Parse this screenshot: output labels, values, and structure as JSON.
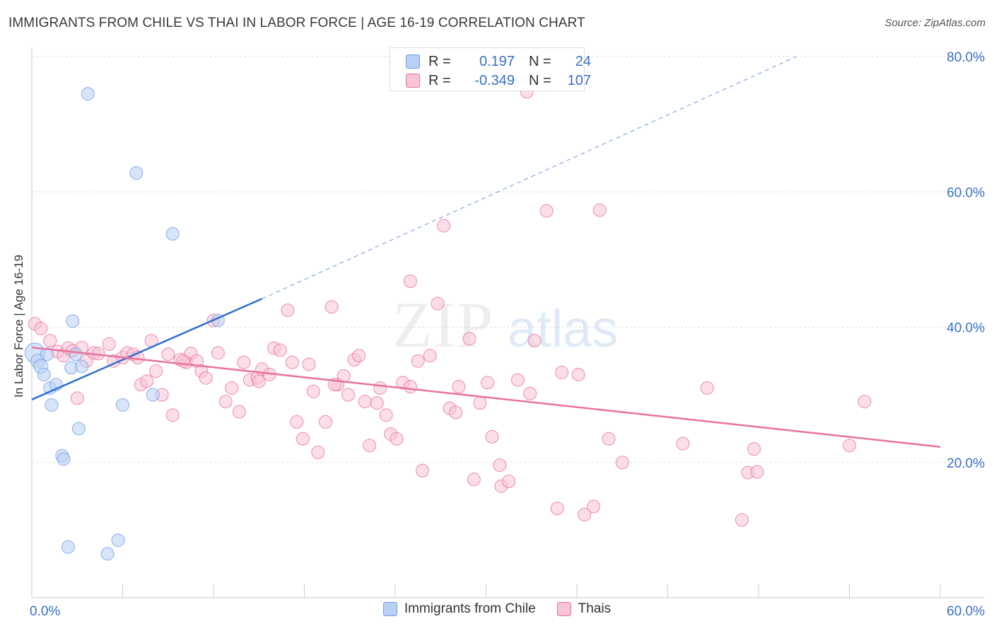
{
  "header": {
    "title": "IMMIGRANTS FROM CHILE VS THAI IN LABOR FORCE | AGE 16-19 CORRELATION CHART",
    "source": "Source: ZipAtlas.com"
  },
  "stats": {
    "rows": [
      {
        "r_label": "R =",
        "r_value": "0.197",
        "n_label": "N =",
        "n_value": "24",
        "color": "#6f9ee8"
      },
      {
        "r_label": "R =",
        "r_value": "-0.349",
        "n_label": "N =",
        "n_value": "107",
        "color": "#f08db0"
      }
    ]
  },
  "watermark": {
    "zip": "ZIP",
    "atlas": "atlas"
  },
  "chart_data": {
    "type": "scatter",
    "ylabel": "In Labor Force | Age 16-19",
    "xlim": [
      0,
      60
    ],
    "ylim": [
      0,
      80
    ],
    "x_tick_labels": [
      "0.0%",
      "60.0%"
    ],
    "y_ticks": [
      20,
      40,
      60,
      80
    ],
    "y_tick_labels": [
      "20.0%",
      "40.0%",
      "60.0%",
      "80.0%"
    ],
    "grid": true,
    "legend_position": "bottom",
    "series": [
      {
        "name": "Immigrants from Chile",
        "color": "#6f9ee8",
        "fill": "#b8d0f3",
        "trend": {
          "x0": 0,
          "y0": 29.3,
          "x1": 15.2,
          "y1": 44.2,
          "extend_to_x": 50.5,
          "extend_to_y": 80.0
        },
        "points": [
          [
            0.2,
            36.2
          ],
          [
            0.4,
            35.0
          ],
          [
            0.6,
            34.2
          ],
          [
            0.8,
            33.0
          ],
          [
            1.0,
            36.0
          ],
          [
            1.2,
            31.0
          ],
          [
            1.3,
            28.5
          ],
          [
            1.6,
            31.5
          ],
          [
            2.0,
            21.0
          ],
          [
            2.1,
            20.5
          ],
          [
            2.4,
            7.5
          ],
          [
            2.6,
            34.0
          ],
          [
            2.7,
            40.9
          ],
          [
            2.9,
            36.0
          ],
          [
            3.1,
            25.0
          ],
          [
            3.3,
            34.2
          ],
          [
            3.7,
            74.5
          ],
          [
            5.0,
            6.5
          ],
          [
            5.7,
            8.5
          ],
          [
            6.0,
            28.5
          ],
          [
            6.9,
            62.8
          ],
          [
            8.0,
            30.0
          ],
          [
            9.3,
            53.8
          ],
          [
            12.3,
            41.0
          ]
        ],
        "sizes": [
          14,
          10,
          10,
          9,
          9,
          9,
          9,
          9,
          9,
          9,
          9,
          9,
          9,
          9,
          9,
          9,
          9,
          9,
          9,
          9,
          9,
          9,
          9,
          9
        ]
      },
      {
        "name": "Thais",
        "color": "#e8729f",
        "fill": "#f7c3d5",
        "trend": {
          "x0": 0,
          "y0": 37.0,
          "x1": 60,
          "y1": 22.3
        },
        "points": [
          [
            0.2,
            40.5
          ],
          [
            0.6,
            39.8
          ],
          [
            1.2,
            38.0
          ],
          [
            1.7,
            36.4
          ],
          [
            2.1,
            35.8
          ],
          [
            2.4,
            36.9
          ],
          [
            2.7,
            36.5
          ],
          [
            3.0,
            29.5
          ],
          [
            3.3,
            37.0
          ],
          [
            3.6,
            35.0
          ],
          [
            4.1,
            36.2
          ],
          [
            4.4,
            36.1
          ],
          [
            5.1,
            37.5
          ],
          [
            5.4,
            35.0
          ],
          [
            6.0,
            35.5
          ],
          [
            6.3,
            36.2
          ],
          [
            6.7,
            36.0
          ],
          [
            7.0,
            35.5
          ],
          [
            7.2,
            31.5
          ],
          [
            7.6,
            32.0
          ],
          [
            7.9,
            38.0
          ],
          [
            8.2,
            33.5
          ],
          [
            8.6,
            30.0
          ],
          [
            9.0,
            36.0
          ],
          [
            9.3,
            27.0
          ],
          [
            9.8,
            35.2
          ],
          [
            10.2,
            34.8
          ],
          [
            10.5,
            36.1
          ],
          [
            10.9,
            35.0
          ],
          [
            11.2,
            33.5
          ],
          [
            11.5,
            32.5
          ],
          [
            12.0,
            41.0
          ],
          [
            12.3,
            36.2
          ],
          [
            12.8,
            29.0
          ],
          [
            13.2,
            31.0
          ],
          [
            13.7,
            27.5
          ],
          [
            14.0,
            34.8
          ],
          [
            14.4,
            32.2
          ],
          [
            14.9,
            32.5
          ],
          [
            15.2,
            33.8
          ],
          [
            15.7,
            33.0
          ],
          [
            16.0,
            36.9
          ],
          [
            16.4,
            36.6
          ],
          [
            16.9,
            42.5
          ],
          [
            17.2,
            34.8
          ],
          [
            17.5,
            26.0
          ],
          [
            17.9,
            23.5
          ],
          [
            18.3,
            34.5
          ],
          [
            18.6,
            30.5
          ],
          [
            18.9,
            21.5
          ],
          [
            19.4,
            26.0
          ],
          [
            19.8,
            43.0
          ],
          [
            20.2,
            31.5
          ],
          [
            20.6,
            32.8
          ],
          [
            20.9,
            30.0
          ],
          [
            21.3,
            35.2
          ],
          [
            21.6,
            35.8
          ],
          [
            22.0,
            29.0
          ],
          [
            22.3,
            22.5
          ],
          [
            22.8,
            28.8
          ],
          [
            23.0,
            31.0
          ],
          [
            23.4,
            27.0
          ],
          [
            23.7,
            24.2
          ],
          [
            24.1,
            23.5
          ],
          [
            24.5,
            31.8
          ],
          [
            25.0,
            46.8
          ],
          [
            25.5,
            35.0
          ],
          [
            25.8,
            18.8
          ],
          [
            26.3,
            35.8
          ],
          [
            26.8,
            43.5
          ],
          [
            27.2,
            55.0
          ],
          [
            27.6,
            28.0
          ],
          [
            28.0,
            27.4
          ],
          [
            28.2,
            31.2
          ],
          [
            28.9,
            38.3
          ],
          [
            29.2,
            17.5
          ],
          [
            29.6,
            28.8
          ],
          [
            30.1,
            31.8
          ],
          [
            30.4,
            23.8
          ],
          [
            30.9,
            19.6
          ],
          [
            31.0,
            16.5
          ],
          [
            31.5,
            17.2
          ],
          [
            32.1,
            32.2
          ],
          [
            32.7,
            74.8
          ],
          [
            32.9,
            30.2
          ],
          [
            33.2,
            38.0
          ],
          [
            34.0,
            57.2
          ],
          [
            34.7,
            13.2
          ],
          [
            35.0,
            33.3
          ],
          [
            36.1,
            33.0
          ],
          [
            36.5,
            12.3
          ],
          [
            37.1,
            13.5
          ],
          [
            37.5,
            57.3
          ],
          [
            38.1,
            23.5
          ],
          [
            39.0,
            20.0
          ],
          [
            43.0,
            22.8
          ],
          [
            44.6,
            31.0
          ],
          [
            46.9,
            11.5
          ],
          [
            47.3,
            18.5
          ],
          [
            47.7,
            22.0
          ],
          [
            47.9,
            18.6
          ],
          [
            54.0,
            22.5
          ],
          [
            55.0,
            29.0
          ],
          [
            10.0,
            35.0
          ],
          [
            15.0,
            32.0
          ],
          [
            20.0,
            31.5
          ],
          [
            25.0,
            31.2
          ]
        ]
      }
    ]
  }
}
